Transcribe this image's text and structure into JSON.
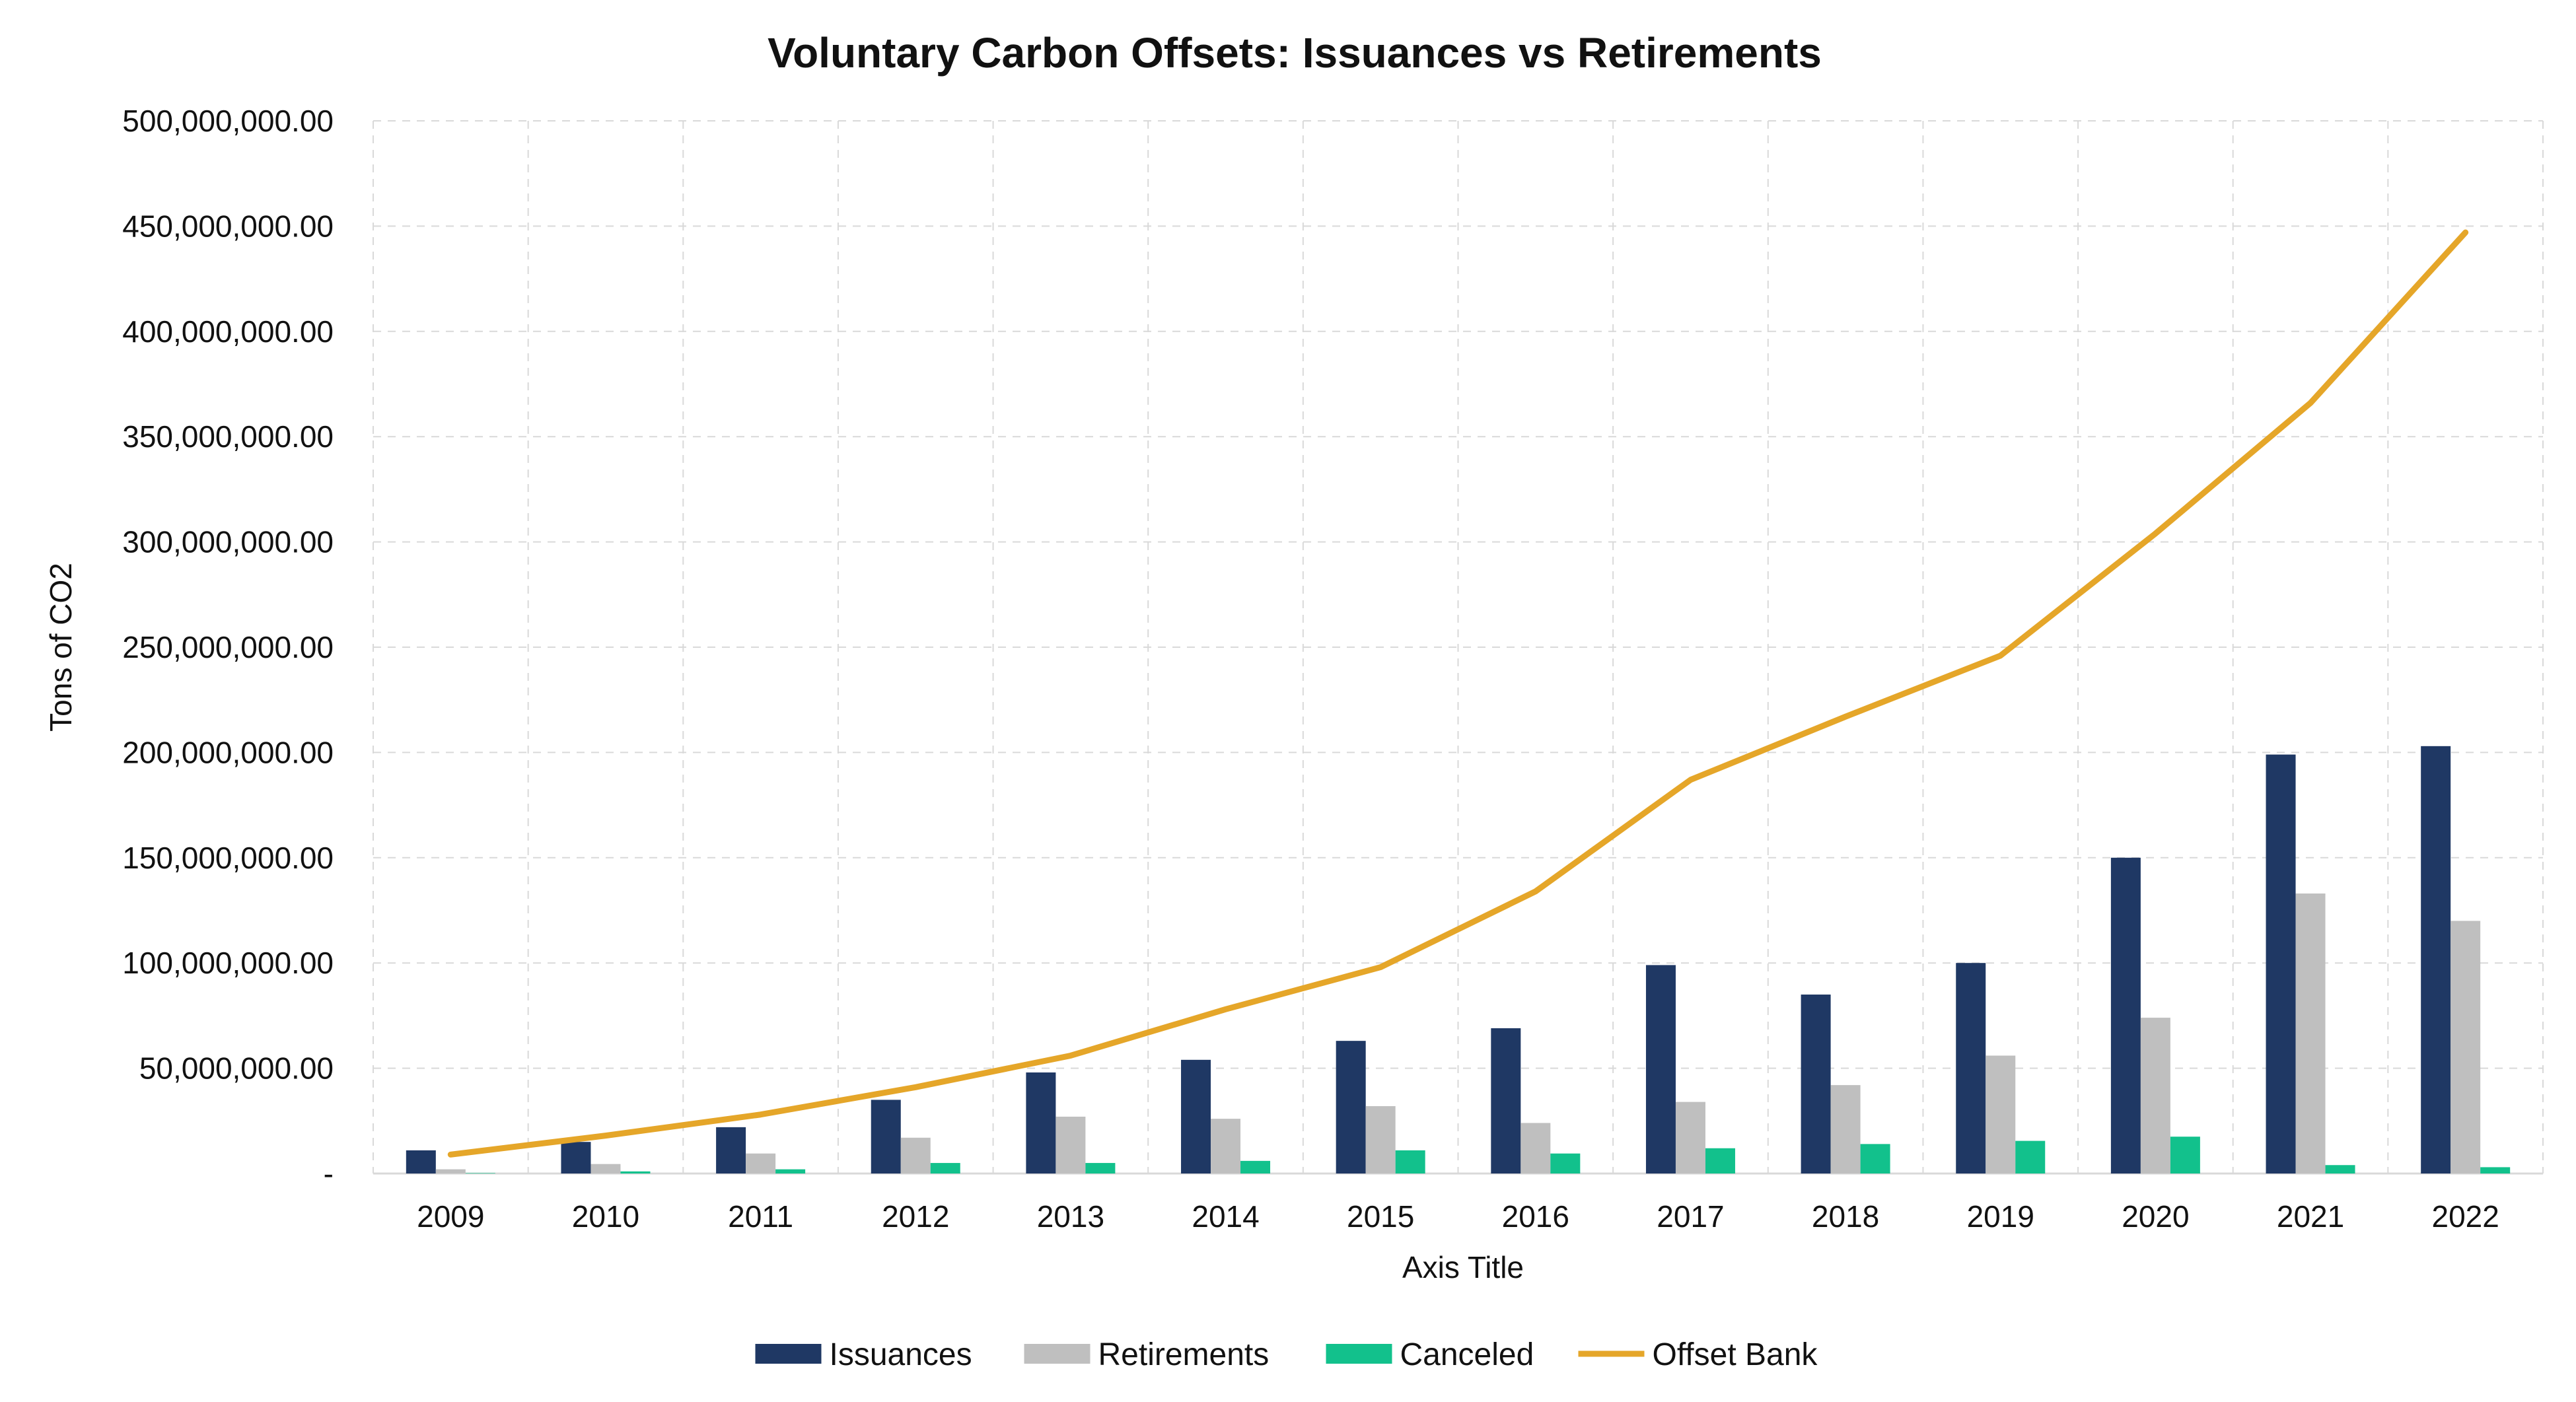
{
  "chart_data": {
    "type": "bar",
    "title": "Voluntary Carbon Offsets: Issuances vs Retirements",
    "xlabel": "Axis Title",
    "ylabel": "Tons of CO2",
    "ylim": [
      0,
      500000000
    ],
    "grid": true,
    "legend_position": "bottom",
    "categories": [
      "2009",
      "2010",
      "2011",
      "2012",
      "2013",
      "2014",
      "2015",
      "2016",
      "2017",
      "2018",
      "2019",
      "2020",
      "2021",
      "2022"
    ],
    "yticks": [
      0,
      50000000,
      100000000,
      150000000,
      200000000,
      250000000,
      300000000,
      350000000,
      400000000,
      450000000,
      500000000
    ],
    "ytick_labels": [
      "-",
      "50,000,000.00",
      "100,000,000.00",
      "150,000,000.00",
      "200,000,000.00",
      "250,000,000.00",
      "300,000,000.00",
      "350,000,000.00",
      "400,000,000.00",
      "450,000,000.00",
      "500,000,000.00"
    ],
    "series": [
      {
        "name": "Issuances",
        "type": "bar",
        "color": "#1f3864",
        "values": [
          11000000,
          15000000,
          22000000,
          35000000,
          48000000,
          54000000,
          63000000,
          69000000,
          99000000,
          85000000,
          100000000,
          150000000,
          199000000,
          203000000
        ]
      },
      {
        "name": "Retirements",
        "type": "bar",
        "color": "#bfbfbf",
        "values": [
          2000000,
          4500000,
          9500000,
          17000000,
          27000000,
          26000000,
          32000000,
          24000000,
          34000000,
          42000000,
          56000000,
          74000000,
          133000000,
          120000000
        ]
      },
      {
        "name": "Canceled",
        "type": "bar",
        "color": "#12c18c",
        "values": [
          200000,
          1000000,
          2000000,
          5000000,
          5000000,
          6000000,
          11000000,
          9500000,
          12000000,
          14000000,
          15500000,
          17500000,
          4000000,
          3000000
        ]
      },
      {
        "name": "Offset Bank",
        "type": "line",
        "color": "#e5a629",
        "values": [
          9000000,
          18000000,
          28000000,
          41000000,
          56000000,
          78000000,
          98000000,
          134000000,
          187000000,
          217000000,
          246000000,
          304000000,
          366000000,
          447000000
        ]
      }
    ]
  }
}
